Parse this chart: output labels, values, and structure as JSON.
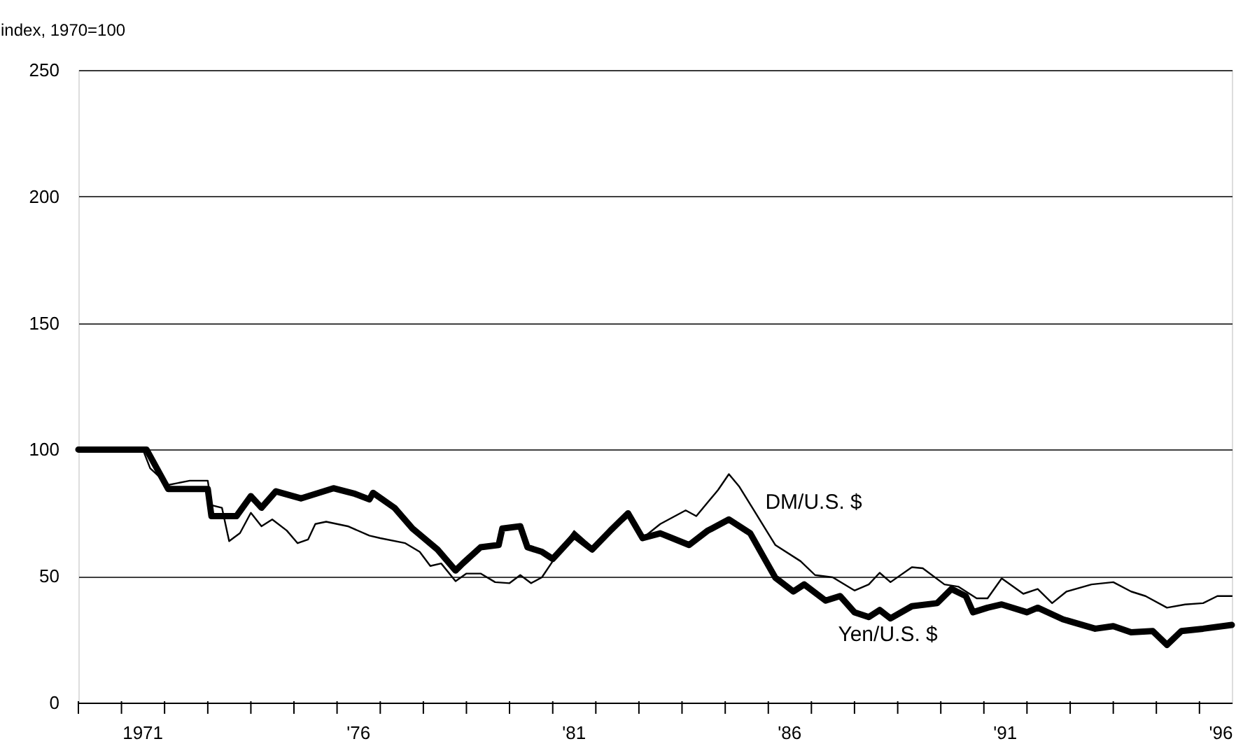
{
  "chart_data": {
    "type": "line",
    "ylabel": "index, 1970=100",
    "xlim": [
      "1970-01-01",
      "1996-10-01"
    ],
    "ylim": [
      0,
      250
    ],
    "yticks": [
      0,
      50,
      100,
      150,
      200,
      250
    ],
    "xticks": [
      {
        "value": "1970-01-01",
        "label": null
      },
      {
        "value": "1971-01-01",
        "label": null
      },
      {
        "value": "1972-01-01",
        "label": null
      },
      {
        "value": "1973-01-01",
        "label": null
      },
      {
        "value": "1974-01-01",
        "label": null
      },
      {
        "value": "1975-01-01",
        "label": null
      },
      {
        "value": "1976-01-01",
        "label": null
      },
      {
        "value": "1977-01-01",
        "label": null
      },
      {
        "value": "1978-01-01",
        "label": null
      },
      {
        "value": "1979-01-01",
        "label": null
      },
      {
        "value": "1980-01-01",
        "label": null
      },
      {
        "value": "1981-01-01",
        "label": null
      },
      {
        "value": "1982-01-01",
        "label": null
      },
      {
        "value": "1983-01-01",
        "label": null
      },
      {
        "value": "1984-01-01",
        "label": null
      },
      {
        "value": "1985-01-01",
        "label": null
      },
      {
        "value": "1986-01-01",
        "label": null
      },
      {
        "value": "1987-01-01",
        "label": null
      },
      {
        "value": "1988-01-01",
        "label": null
      },
      {
        "value": "1989-01-01",
        "label": null
      },
      {
        "value": "1990-01-01",
        "label": null
      },
      {
        "value": "1991-01-01",
        "label": null
      },
      {
        "value": "1992-01-01",
        "label": null
      },
      {
        "value": "1993-01-01",
        "label": null
      },
      {
        "value": "1994-01-01",
        "label": null
      },
      {
        "value": "1995-01-01",
        "label": null
      },
      {
        "value": "1996-01-01",
        "label": null
      },
      {
        "value": "1971-07-01",
        "label": "1971"
      },
      {
        "value": "1976-07-01",
        "label": "'76"
      },
      {
        "value": "1981-07-01",
        "label": "'81"
      },
      {
        "value": "1986-07-01",
        "label": "'86"
      },
      {
        "value": "1991-07-01",
        "label": "'91"
      },
      {
        "value": "1996-07-01",
        "label": "'96"
      }
    ],
    "grid": "y",
    "line_style": "solid",
    "series": [
      {
        "name": "DM/U.S. $",
        "color": "#000000",
        "x": [
          "1970-01",
          "1971-07",
          "1971-09",
          "1972-02",
          "1972-08",
          "1973-01",
          "1973-02",
          "1973-05",
          "1973-07",
          "1973-10",
          "1974-01",
          "1974-04",
          "1974-07",
          "1974-11",
          "1975-02",
          "1975-05",
          "1975-07",
          "1975-10",
          "1976-04",
          "1976-10",
          "1977-01",
          "1977-08",
          "1977-12",
          "1978-03",
          "1978-06",
          "1978-10",
          "1979-01",
          "1979-05",
          "1979-09",
          "1980-01",
          "1980-04",
          "1980-07",
          "1980-10",
          "1981-01",
          "1981-07",
          "1981-12",
          "1982-06",
          "1982-10",
          "1983-02",
          "1983-07",
          "1984-02",
          "1984-05",
          "1984-11",
          "1985-02",
          "1985-05",
          "1985-09",
          "1986-03",
          "1986-10",
          "1987-02",
          "1987-07",
          "1988-01",
          "1988-05",
          "1988-08",
          "1988-11",
          "1989-05",
          "1989-08",
          "1990-02",
          "1990-06",
          "1990-11",
          "1991-02",
          "1991-06",
          "1991-12",
          "1992-04",
          "1992-08",
          "1992-12",
          "1993-07",
          "1994-01",
          "1994-06",
          "1994-10",
          "1995-04",
          "1995-09",
          "1996-02",
          "1996-06",
          "1996-10"
        ],
        "values": [
          100,
          100,
          92.6,
          86,
          87.7,
          87.7,
          78,
          77,
          63.8,
          67,
          75,
          69.7,
          72.4,
          68,
          63,
          64.5,
          70.6,
          71.5,
          69.7,
          66,
          65,
          63,
          59.6,
          54,
          55,
          48,
          51,
          51,
          47.6,
          47.2,
          50.4,
          47.2,
          49.5,
          55.9,
          67.8,
          61.4,
          68.8,
          73.3,
          65,
          70.6,
          76,
          73.7,
          84,
          90.3,
          85.3,
          76,
          62.3,
          55.9,
          50.4,
          49.5,
          44.3,
          46.7,
          51.3,
          47.6,
          53.5,
          53.1,
          46.7,
          45.8,
          41.2,
          41.2,
          49.1,
          43,
          44.9,
          39.3,
          43.9,
          46.7,
          47.6,
          43.9,
          42.1,
          37.5,
          38.8,
          39.3,
          42.1,
          42.1
        ]
      },
      {
        "name": "Yen/U.S. $",
        "color": "#000000",
        "x": [
          "1970-01",
          "1971-08",
          "1972-02",
          "1973-01",
          "1973-02",
          "1973-09",
          "1974-01",
          "1974-04",
          "1974-08",
          "1975-03",
          "1975-12",
          "1976-06",
          "1976-10",
          "1976-11",
          "1977-05",
          "1977-10",
          "1978-05",
          "1978-10",
          "1978-12",
          "1979-05",
          "1979-10",
          "1979-11",
          "1980-04",
          "1980-06",
          "1980-10",
          "1981-01",
          "1981-07",
          "1981-12",
          "1982-05",
          "1982-10",
          "1983-02",
          "1983-07",
          "1984-03",
          "1984-08",
          "1985-02",
          "1985-08",
          "1985-12",
          "1986-03",
          "1986-08",
          "1986-11",
          "1987-05",
          "1987-09",
          "1988-01",
          "1988-05",
          "1988-08",
          "1988-11",
          "1989-05",
          "1989-12",
          "1990-04",
          "1990-08",
          "1990-10",
          "1991-02",
          "1991-06",
          "1992-01",
          "1992-04",
          "1992-11",
          "1993-08",
          "1994-01",
          "1994-06",
          "1994-12",
          "1995-04",
          "1995-08",
          "1996-02",
          "1996-10"
        ],
        "values": [
          100,
          100,
          84.4,
          84.4,
          73.7,
          73.7,
          81.6,
          77,
          83.5,
          80.7,
          84.7,
          82.5,
          80.3,
          82.9,
          77,
          68.8,
          60.5,
          52.2,
          55,
          61.4,
          62.3,
          68.8,
          69.7,
          61.4,
          59.6,
          56.8,
          66,
          60.5,
          67.8,
          74.8,
          65,
          66.9,
          62.3,
          67.8,
          72.4,
          66.9,
          56.8,
          49.4,
          43.9,
          46.7,
          40.3,
          42.1,
          35.7,
          33.8,
          36.6,
          33.3,
          38.1,
          39.3,
          44.9,
          42.1,
          35.7,
          37.5,
          38.8,
          35.7,
          37.5,
          32.9,
          29.2,
          30.2,
          27.8,
          28.3,
          22.8,
          28.3,
          29.2,
          30.7
        ]
      }
    ]
  }
}
